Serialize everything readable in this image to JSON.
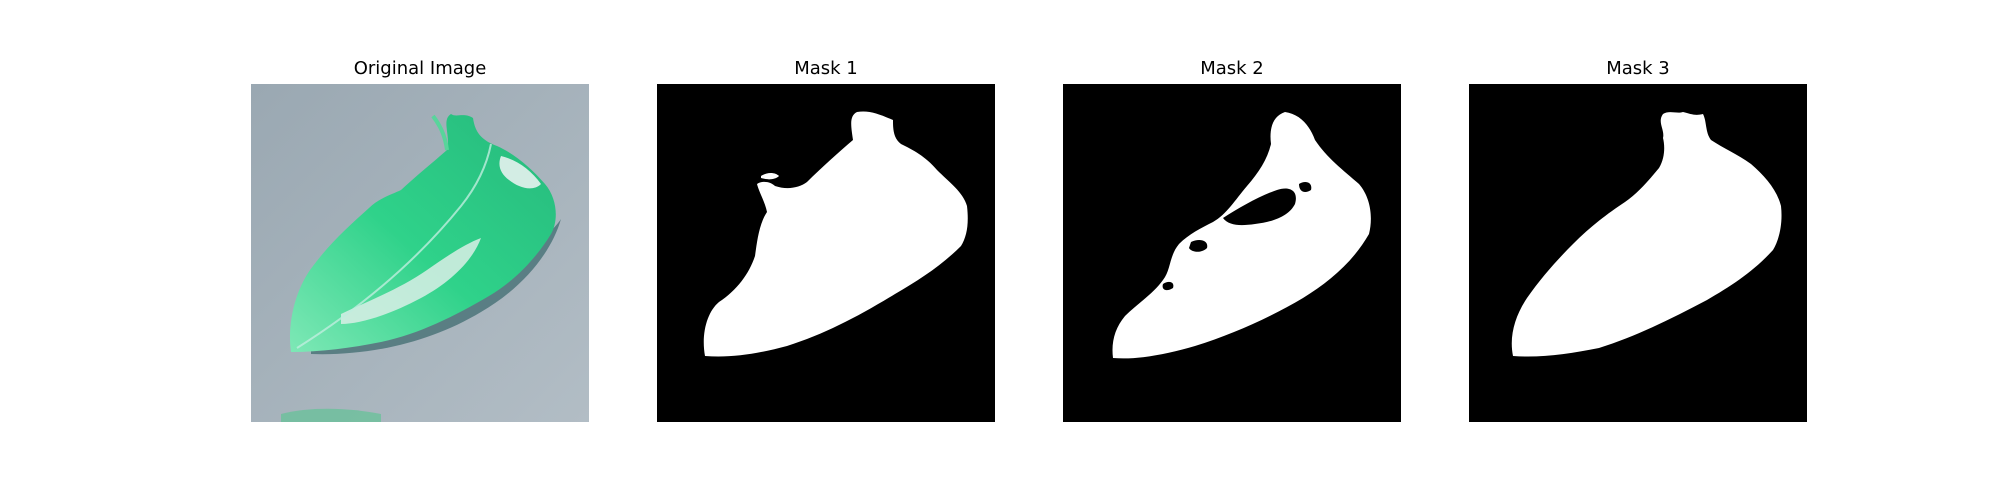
{
  "panels": [
    {
      "title": "Original Image",
      "kind": "photo"
    },
    {
      "title": "Mask 1",
      "kind": "mask"
    },
    {
      "title": "Mask 2",
      "kind": "mask"
    },
    {
      "title": "Mask 3",
      "kind": "mask"
    }
  ],
  "colors": {
    "mask_background": "#000000",
    "mask_foreground": "#ffffff",
    "photo_background": "#a7b3bc",
    "leaf_green": "#2fd28a",
    "leaf_light": "#7ee8b6",
    "leaf_dark": "#1e8f63",
    "shadow": "#4c7479"
  }
}
